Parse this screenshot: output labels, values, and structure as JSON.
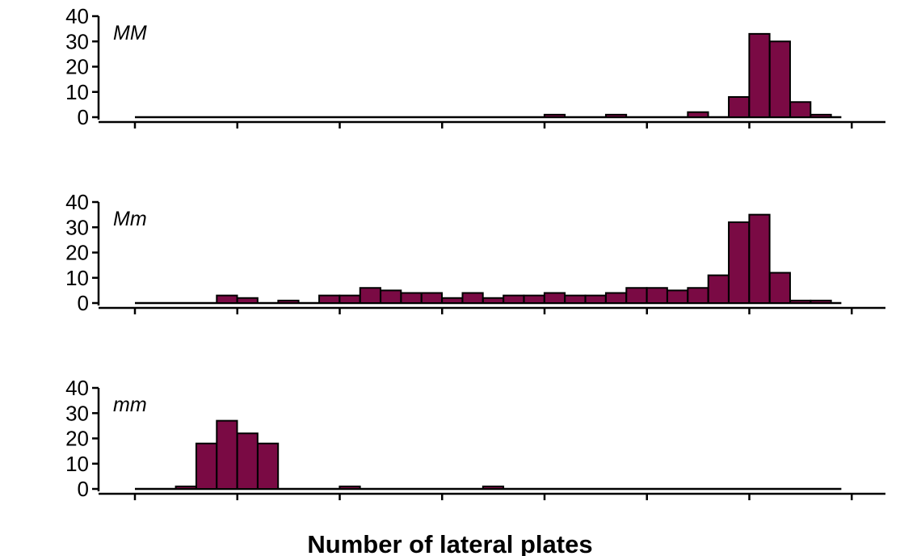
{
  "chart_data": {
    "type": "bar",
    "xlabel": "Number of lateral plates",
    "bar_color": "#7a0a44",
    "bins": [
      0,
      1,
      2,
      3,
      4,
      5,
      6,
      7,
      8,
      9,
      10,
      11,
      12,
      13,
      14,
      15,
      16,
      17,
      18,
      19,
      20,
      21,
      22,
      23,
      24,
      25,
      26,
      27,
      28,
      29,
      30,
      31,
      32,
      33,
      34
    ],
    "xlim": [
      -0.5,
      35.5
    ],
    "x_ticks": [
      0,
      5,
      10,
      15,
      20,
      25,
      30,
      35
    ],
    "ylim": [
      0,
      40
    ],
    "y_ticks": [
      0,
      10,
      20,
      30,
      40
    ],
    "panels": [
      {
        "name": "MM",
        "values": [
          0,
          0,
          0,
          0,
          0,
          0,
          0,
          0,
          0,
          0,
          0,
          0,
          0,
          0,
          0,
          0,
          0,
          0,
          0,
          0,
          1,
          0,
          0,
          1,
          0,
          0,
          0,
          2,
          0,
          8,
          33,
          30,
          6,
          1,
          0
        ]
      },
      {
        "name": "Mm",
        "values": [
          0,
          0,
          0,
          0,
          3,
          2,
          0,
          1,
          0,
          3,
          3,
          6,
          5,
          4,
          4,
          2,
          4,
          2,
          3,
          3,
          4,
          3,
          3,
          4,
          6,
          6,
          5,
          6,
          11,
          32,
          35,
          12,
          1,
          1,
          0
        ]
      },
      {
        "name": "mm",
        "values": [
          0,
          0,
          1,
          18,
          27,
          22,
          18,
          0,
          0,
          0,
          1,
          0,
          0,
          0,
          0,
          0,
          0,
          1,
          0,
          0,
          0,
          0,
          0,
          0,
          0,
          0,
          0,
          0,
          0,
          0,
          0,
          0,
          0,
          0,
          0
        ]
      }
    ]
  }
}
